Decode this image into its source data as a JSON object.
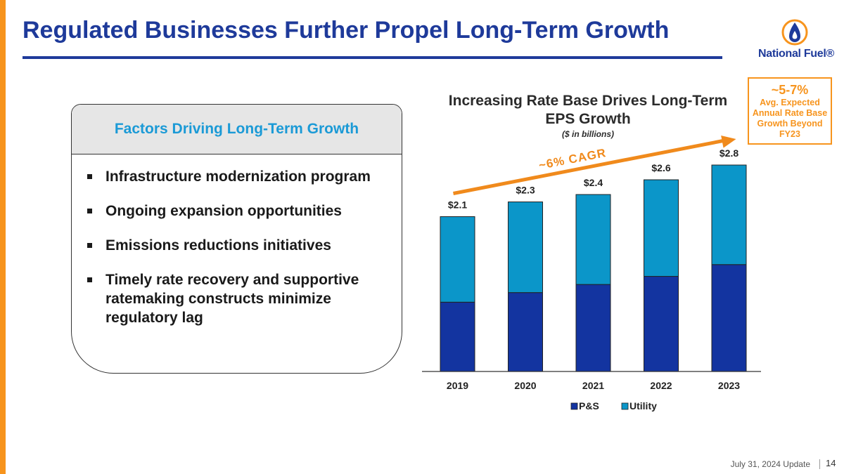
{
  "slide": {
    "title": "Regulated Businesses Further Propel Long-Term Growth",
    "logo_text": "National Fuel®",
    "footer_date": "July 31, 2024 Update",
    "page_number": "14"
  },
  "factors": {
    "header": "Factors Driving Long-Term Growth",
    "items": [
      "Infrastructure modernization program",
      "Ongoing expansion opportunities",
      "Emissions reductions initiatives",
      "Timely rate recovery and supportive ratemaking constructs minimize regulatory lag"
    ]
  },
  "callout": {
    "headline": "~5-7%",
    "body": "Avg. Expected Annual Rate Base Growth Beyond FY23"
  },
  "chart_data": {
    "type": "bar",
    "stacked": true,
    "title": "Increasing Rate Base Drives Long-Term EPS Growth",
    "subtitle": "($ in billions)",
    "categories": [
      "2019",
      "2020",
      "2021",
      "2022",
      "2023"
    ],
    "series": [
      {
        "name": "P&S",
        "color": "#1334a0",
        "values": [
          0.94,
          1.07,
          1.18,
          1.29,
          1.45
        ]
      },
      {
        "name": "Utility",
        "color": "#0b96c9",
        "values": [
          1.16,
          1.23,
          1.22,
          1.31,
          1.35
        ]
      }
    ],
    "totals_labels": [
      "$2.1",
      "$2.3",
      "$2.4",
      "$2.6",
      "$2.8"
    ],
    "ylim": [
      0,
      3.0
    ],
    "legend_position": "bottom",
    "annotation": {
      "text": "~6% CAGR",
      "color": "#f08a1c"
    }
  },
  "icons": {
    "logo": "flame-drop-icon",
    "bullet": "square-bullet-icon"
  }
}
